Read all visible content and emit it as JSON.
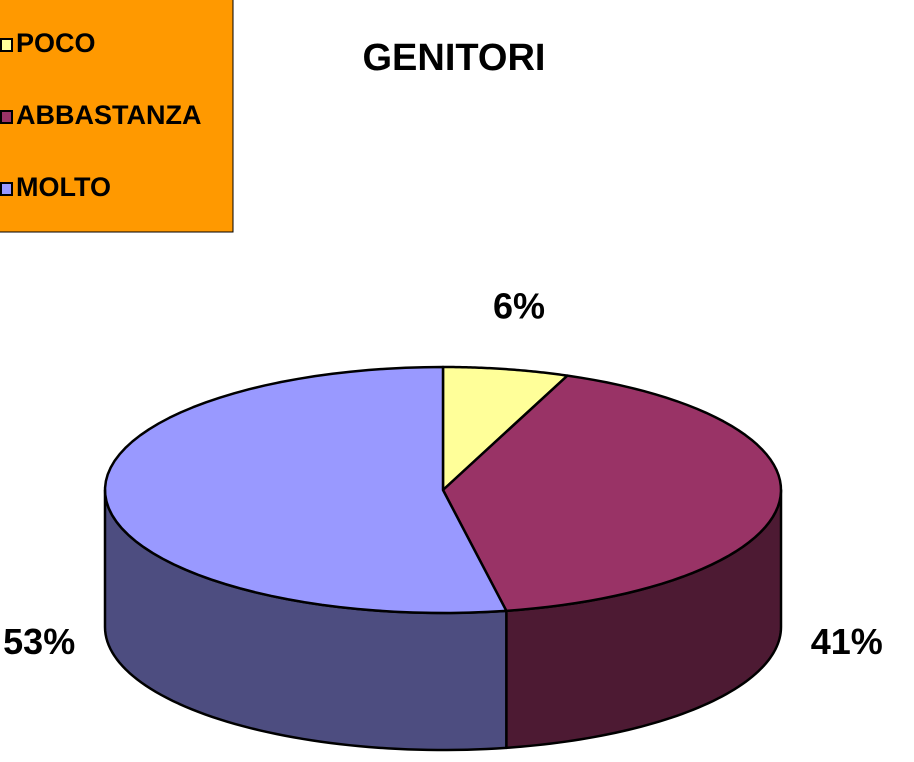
{
  "chart_data": {
    "type": "pie",
    "title": "GENITORI",
    "categories": [
      "POCO",
      "ABBASTANZA",
      "MOLTO"
    ],
    "values": [
      6,
      41,
      53
    ],
    "value_labels": [
      "6%",
      "41%",
      "53%"
    ],
    "colors": [
      "#ffff99",
      "#993366",
      "#9999ff"
    ],
    "legend": "top-left"
  }
}
